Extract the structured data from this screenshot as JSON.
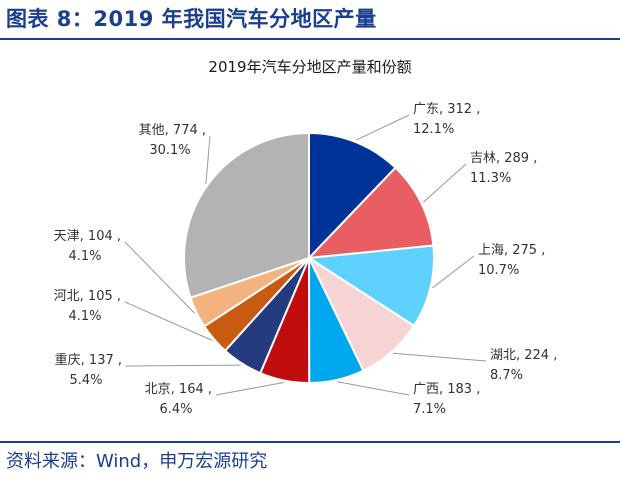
{
  "header": {
    "figure_title": "图表 8：2019 年我国汽车分地区产量"
  },
  "footer": {
    "source": "资料来源：Wind，申万宏源研究"
  },
  "colors": {
    "brand": "#1a3f8f",
    "leader": "#999999"
  },
  "chart_data": {
    "type": "pie",
    "title": "2019年汽车分地区产量和份额",
    "slices": [
      {
        "name": "广东",
        "value": 312,
        "share": "12.1%",
        "color": "#00339a",
        "line1": "广东, 312 ,",
        "line2": "12.1%"
      },
      {
        "name": "吉林",
        "value": 289,
        "share": "11.3%",
        "color": "#e85e63",
        "line1": "吉林, 289 ,",
        "line2": "11.3%"
      },
      {
        "name": "上海",
        "value": 275,
        "share": "10.7%",
        "color": "#5fd1ff",
        "line1": "上海, 275 ,",
        "line2": "10.7%"
      },
      {
        "name": "湖北",
        "value": 224,
        "share": "8.7%",
        "color": "#f6d4d4",
        "line1": "湖北, 224 ,",
        "line2": "8.7%"
      },
      {
        "name": "广西",
        "value": 183,
        "share": "7.1%",
        "color": "#00a7ec",
        "line1": "广西, 183 ,",
        "line2": "7.1%"
      },
      {
        "name": "北京",
        "value": 164,
        "share": "6.4%",
        "color": "#c00b0f",
        "line1": "北京, 164 ,",
        "line2": "6.4%"
      },
      {
        "name": "重庆",
        "value": 137,
        "share": "5.4%",
        "color": "#253b80",
        "line1": "重庆, 137 ,",
        "line2": "5.4%"
      },
      {
        "name": "河北",
        "value": 105,
        "share": "4.1%",
        "color": "#c85a12",
        "line1": "河北, 105 ,",
        "line2": "4.1%"
      },
      {
        "name": "天津",
        "value": 104,
        "share": "4.1%",
        "color": "#f4b27e",
        "line1": "天津, 104 ,",
        "line2": "4.1%"
      },
      {
        "name": "其他",
        "value": 774,
        "share": "30.1%",
        "color": "#b3b3b3",
        "line1": "其他, 774 ,",
        "line2": "30.1%"
      }
    ]
  }
}
